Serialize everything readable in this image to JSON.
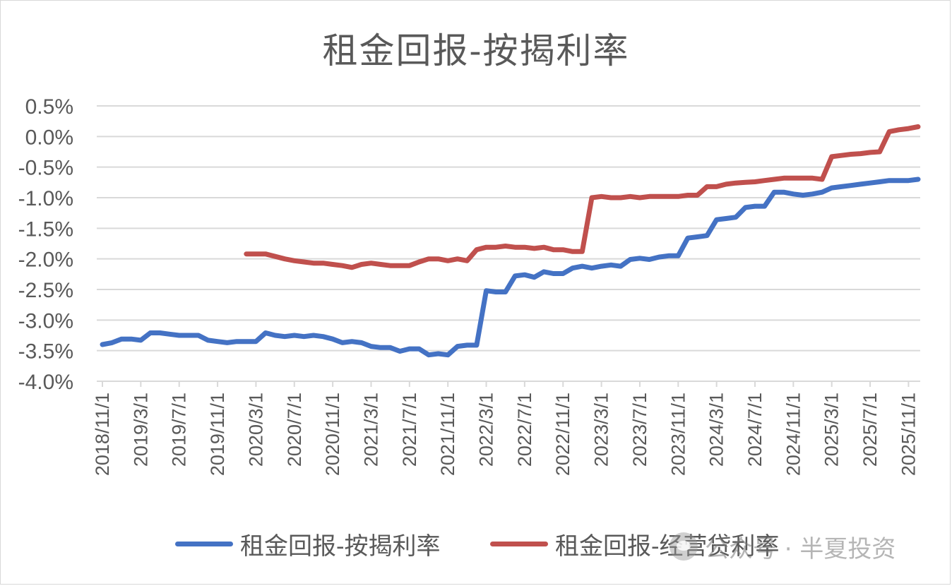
{
  "chart_data": {
    "type": "line",
    "title": "租金回报-按揭利率",
    "xlabel": "",
    "ylabel": "",
    "ylim": [
      -0.04,
      0.005
    ],
    "yticks": [
      "0.5%",
      "0.0%",
      "-0.5%",
      "-1.0%",
      "-1.5%",
      "-2.0%",
      "-2.5%",
      "-3.0%",
      "-3.5%",
      "-4.0%"
    ],
    "ytick_values": [
      0.005,
      0.0,
      -0.005,
      -0.01,
      -0.015,
      -0.02,
      -0.025,
      -0.03,
      -0.035,
      -0.04
    ],
    "xticks": [
      "2018/11/1",
      "2019/3/1",
      "2019/7/1",
      "2019/11/1",
      "2020/3/1",
      "2020/7/1",
      "2020/11/1",
      "2021/3/1",
      "2021/7/1",
      "2021/11/1",
      "2022/3/1",
      "2022/7/1",
      "2022/11/1",
      "2023/3/1",
      "2023/7/1",
      "2023/11/1",
      "2024/3/1",
      "2024/7/1",
      "2024/11/1",
      "2025/3/1",
      "2025/7/1",
      "2025/11/1"
    ],
    "grid": true,
    "legend_position": "bottom",
    "x": [
      "2018/11",
      "2018/12",
      "2019/1",
      "2019/2",
      "2019/3",
      "2019/4",
      "2019/5",
      "2019/6",
      "2019/7",
      "2019/8",
      "2019/9",
      "2019/10",
      "2019/11",
      "2019/12",
      "2020/1",
      "2020/2",
      "2020/3",
      "2020/4",
      "2020/5",
      "2020/6",
      "2020/7",
      "2020/8",
      "2020/9",
      "2020/10",
      "2020/11",
      "2020/12",
      "2021/1",
      "2021/2",
      "2021/3",
      "2021/4",
      "2021/5",
      "2021/6",
      "2021/7",
      "2021/8",
      "2021/9",
      "2021/10",
      "2021/11",
      "2021/12",
      "2022/1",
      "2022/2",
      "2022/3",
      "2022/4",
      "2022/5",
      "2022/6",
      "2022/7",
      "2022/8",
      "2022/9",
      "2022/10",
      "2022/11",
      "2022/12",
      "2023/1",
      "2023/2",
      "2023/3",
      "2023/4",
      "2023/5",
      "2023/6",
      "2023/7",
      "2023/8",
      "2023/9",
      "2023/10",
      "2023/11",
      "2023/12",
      "2024/1",
      "2024/2",
      "2024/3",
      "2024/4",
      "2024/5",
      "2024/6",
      "2024/7",
      "2024/8",
      "2024/9",
      "2024/10",
      "2024/11",
      "2024/12",
      "2025/1",
      "2025/2",
      "2025/3",
      "2025/4",
      "2025/5",
      "2025/6",
      "2025/7",
      "2025/8",
      "2025/9",
      "2025/10",
      "2025/11",
      "2025/12"
    ],
    "series": [
      {
        "name": "租金回报-按揭利率",
        "color": "#4472c4",
        "values": [
          -0.034,
          -0.0337,
          -0.0331,
          -0.0331,
          -0.0333,
          -0.0321,
          -0.0321,
          -0.0323,
          -0.0325,
          -0.0325,
          -0.0325,
          -0.0333,
          -0.0335,
          -0.0337,
          -0.0335,
          -0.0335,
          -0.0335,
          -0.0321,
          -0.0325,
          -0.0327,
          -0.0325,
          -0.0327,
          -0.0325,
          -0.0327,
          -0.0331,
          -0.0337,
          -0.0335,
          -0.0337,
          -0.0343,
          -0.0345,
          -0.0345,
          -0.0351,
          -0.0347,
          -0.0347,
          -0.0357,
          -0.0355,
          -0.0357,
          -0.0343,
          -0.0341,
          -0.0341,
          -0.0252,
          -0.0254,
          -0.0254,
          -0.0228,
          -0.0226,
          -0.023,
          -0.0221,
          -0.0224,
          -0.0224,
          -0.0215,
          -0.0212,
          -0.0215,
          -0.0212,
          -0.021,
          -0.0212,
          -0.0201,
          -0.0199,
          -0.0201,
          -0.0197,
          -0.0195,
          -0.0195,
          -0.0166,
          -0.0164,
          -0.0162,
          -0.0136,
          -0.0134,
          -0.0132,
          -0.0116,
          -0.0114,
          -0.0114,
          -0.0091,
          -0.0091,
          -0.0094,
          -0.0096,
          -0.0094,
          -0.0091,
          -0.0084,
          -0.0082,
          -0.008,
          -0.0078,
          -0.0076,
          -0.0074,
          -0.0072,
          -0.0072,
          -0.0072,
          -0.007
        ]
      },
      {
        "name": "租金回报-经营贷利率",
        "color": "#c0504d",
        "values": [
          null,
          null,
          null,
          null,
          null,
          null,
          null,
          null,
          null,
          null,
          null,
          null,
          null,
          null,
          null,
          -0.0192,
          -0.0192,
          -0.0192,
          -0.0196,
          -0.02,
          -0.0203,
          -0.0205,
          -0.0207,
          -0.0207,
          -0.0209,
          -0.0211,
          -0.0214,
          -0.0209,
          -0.0207,
          -0.0209,
          -0.0211,
          -0.0211,
          -0.0211,
          -0.0205,
          -0.02,
          -0.02,
          -0.0203,
          -0.02,
          -0.0203,
          -0.0185,
          -0.0181,
          -0.0181,
          -0.0179,
          -0.0181,
          -0.0181,
          -0.0183,
          -0.0181,
          -0.0185,
          -0.0185,
          -0.0188,
          -0.0188,
          -0.01,
          -0.0098,
          -0.01,
          -0.01,
          -0.0098,
          -0.01,
          -0.0098,
          -0.0098,
          -0.0098,
          -0.0098,
          -0.0096,
          -0.0096,
          -0.0082,
          -0.0082,
          -0.0078,
          -0.0076,
          -0.0075,
          -0.0074,
          -0.0072,
          -0.007,
          -0.0068,
          -0.0068,
          -0.0068,
          -0.0068,
          -0.007,
          -0.0033,
          -0.0031,
          -0.0029,
          -0.0028,
          -0.0026,
          -0.0025,
          0.0008,
          0.0011,
          0.0013,
          0.0016
        ]
      }
    ]
  },
  "legend": {
    "item1": "租金回报-按揭利率",
    "item2": "租金回报-经营贷利率"
  },
  "watermark": {
    "text": "公众号 · 半夏投资"
  }
}
